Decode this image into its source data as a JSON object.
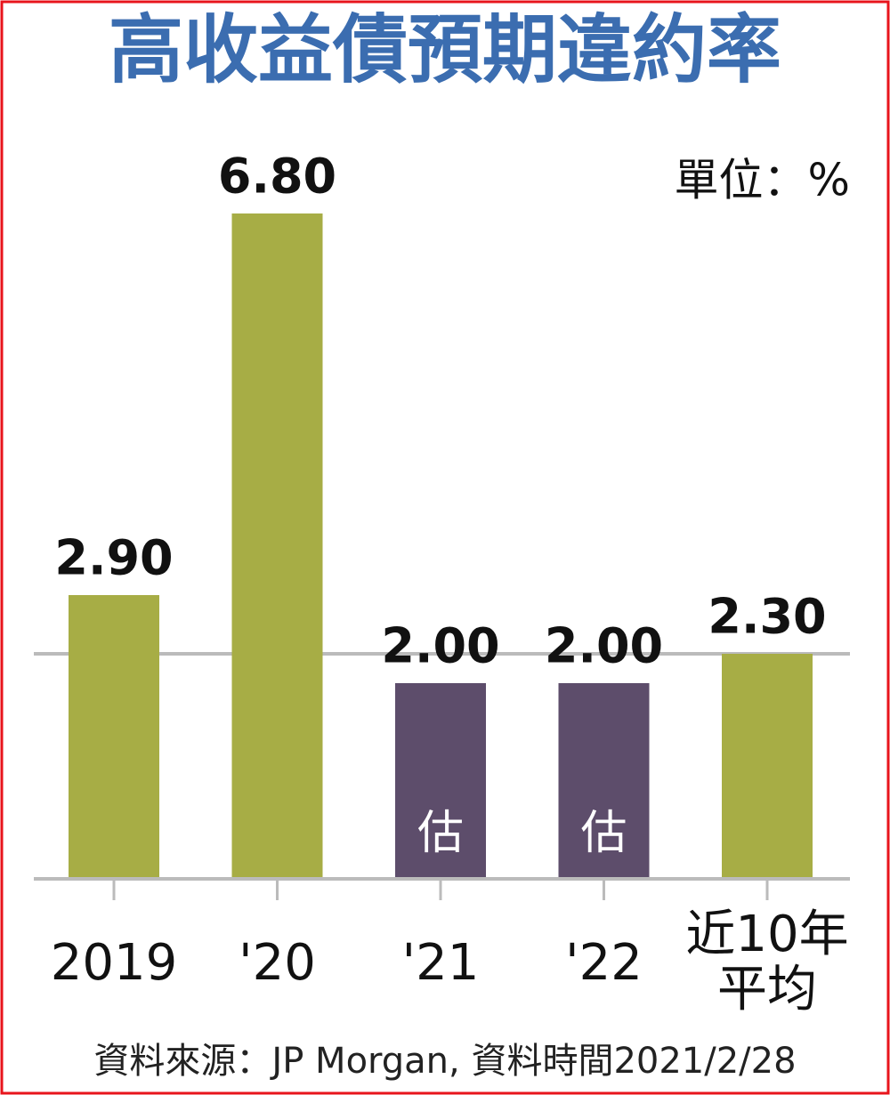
{
  "chart_data": {
    "type": "bar",
    "title": "高收益債預期違約率",
    "unit_label": "單位：%",
    "source": "資料來源：JP Morgan, 資料時間2021/2/28",
    "categories": [
      "2019",
      "'20",
      "'21",
      "'22",
      "近10年平均"
    ],
    "values": [
      2.9,
      6.8,
      2.0,
      2.0,
      2.3
    ],
    "value_labels": [
      "2.90",
      "6.80",
      "2.00",
      "2.00",
      "2.30"
    ],
    "colors": [
      "#a7ad45",
      "#a7ad45",
      "#5d4d6b",
      "#5d4d6b",
      "#a7ad45"
    ],
    "notes": [
      null,
      null,
      "估",
      "估",
      null
    ],
    "ylim": [
      0,
      6.8
    ],
    "reference_line": 2.3
  }
}
